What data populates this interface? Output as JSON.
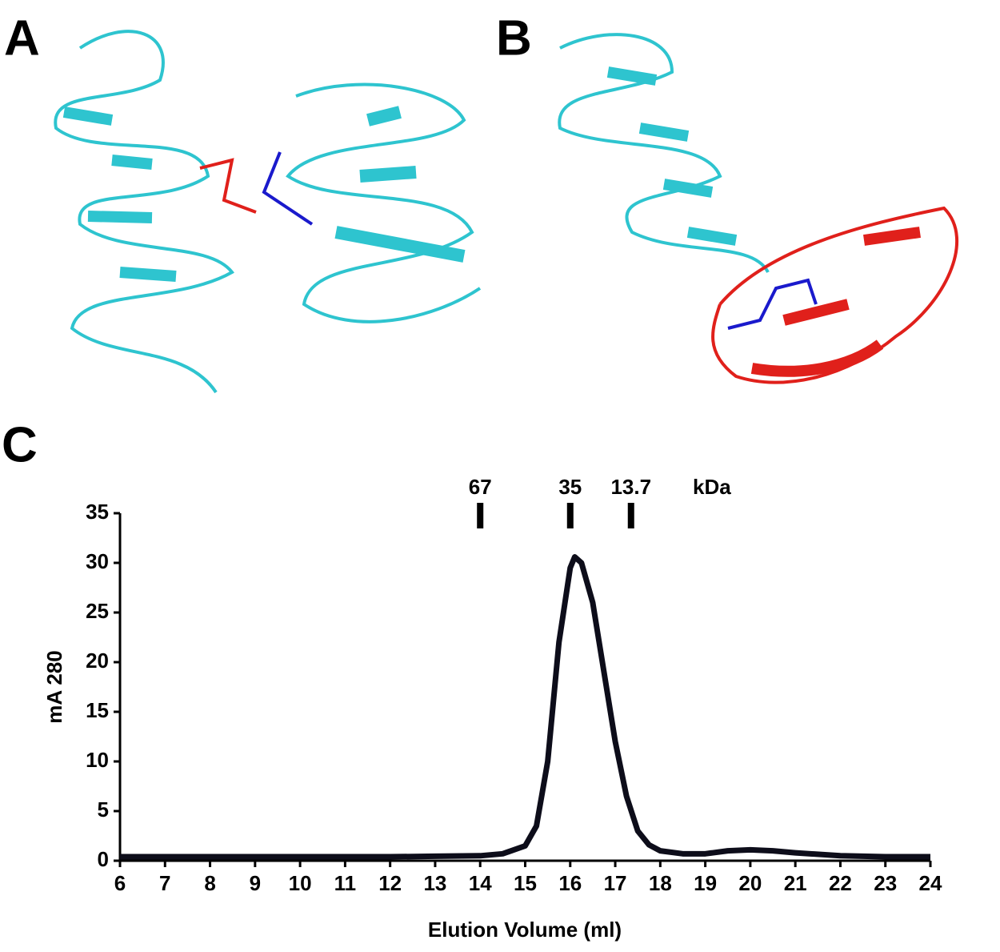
{
  "panel_labels": [
    "A",
    "B",
    "C"
  ],
  "chart_data": {
    "type": "line",
    "x_label": "Elution Volume (ml)",
    "y_label": "mA 280",
    "xlim": [
      6,
      24
    ],
    "ylim": [
      0,
      35
    ],
    "xticks": [
      6,
      7,
      8,
      9,
      10,
      11,
      12,
      13,
      14,
      15,
      16,
      17,
      18,
      19,
      20,
      21,
      22,
      23,
      24
    ],
    "yticks": [
      0,
      5,
      10,
      15,
      20,
      25,
      30,
      35
    ],
    "series": [
      {
        "color": "#0d0d1a",
        "x": [
          6,
          8,
          10,
          12,
          13,
          14,
          14.5,
          15,
          15.25,
          15.5,
          15.75,
          16,
          16.1,
          16.25,
          16.5,
          16.75,
          17,
          17.25,
          17.5,
          17.75,
          18,
          18.5,
          19,
          19.5,
          20,
          20.5,
          21,
          22,
          23,
          24
        ],
        "values": [
          0.4,
          0.4,
          0.4,
          0.4,
          0.45,
          0.5,
          0.7,
          1.5,
          3.5,
          10,
          22,
          29.5,
          30.6,
          30,
          26,
          19,
          12,
          6.5,
          3,
          1.6,
          1,
          0.7,
          0.7,
          1,
          1.1,
          1,
          0.8,
          0.5,
          0.4,
          0.4
        ]
      }
    ],
    "markers": {
      "labels": [
        "67",
        "35",
        "13.7"
      ],
      "positions": [
        14,
        16,
        17.35
      ],
      "unit": "kDa"
    }
  }
}
